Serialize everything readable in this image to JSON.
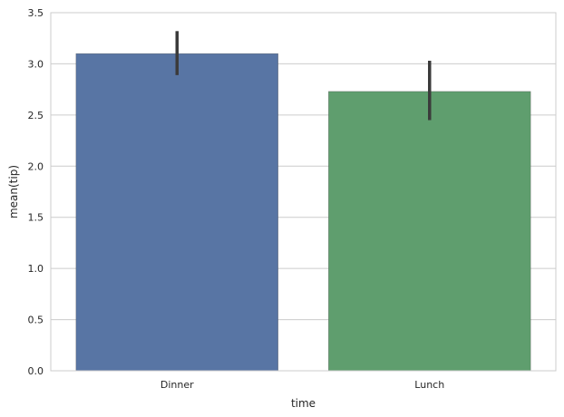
{
  "chart_data": {
    "type": "bar",
    "title": "",
    "xlabel": "time",
    "ylabel": "mean(tip)",
    "categories": [
      "Dinner",
      "Lunch"
    ],
    "values": [
      3.1,
      2.73
    ],
    "error_bars": [
      {
        "low": 2.89,
        "high": 3.32
      },
      {
        "low": 2.45,
        "high": 3.03
      }
    ],
    "ylim": [
      0,
      3.5
    ],
    "yticks": [
      "0.0",
      "0.5",
      "1.0",
      "1.5",
      "2.0",
      "2.5",
      "3.0",
      "3.5"
    ],
    "grid": "horizontal",
    "colors": [
      "#5875a4",
      "#5f9e6e"
    ],
    "error_color": "#3b3b3b"
  }
}
